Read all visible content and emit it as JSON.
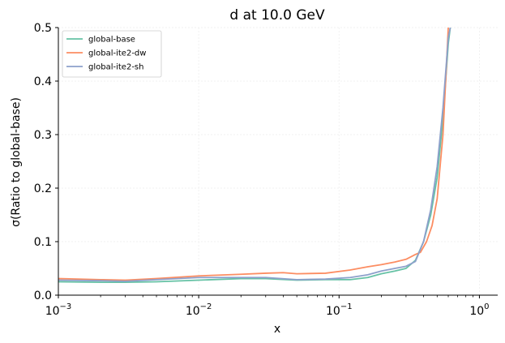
{
  "chart_data": {
    "type": "line",
    "title": "d at 10.0 GeV",
    "xlabel": "x",
    "ylabel": "σ(Ratio to global-base)",
    "xscale": "log",
    "xlim": [
      0.001,
      1.35
    ],
    "ylim": [
      0.0,
      0.5
    ],
    "grid": true,
    "legend_position": "top-left",
    "x_ticks": [
      {
        "value": 0.001,
        "base": "10",
        "exp": "−3"
      },
      {
        "value": 0.01,
        "base": "10",
        "exp": "−2"
      },
      {
        "value": 0.1,
        "base": "10",
        "exp": "−1"
      },
      {
        "value": 1,
        "base": "10",
        "exp": "0"
      }
    ],
    "y_ticks": [
      {
        "value": 0.0,
        "label": "0.0"
      },
      {
        "value": 0.1,
        "label": "0.1"
      },
      {
        "value": 0.2,
        "label": "0.2"
      },
      {
        "value": 0.3,
        "label": "0.3"
      },
      {
        "value": 0.4,
        "label": "0.4"
      },
      {
        "value": 0.5,
        "label": "0.5"
      }
    ],
    "series": [
      {
        "name": "global-base",
        "color": "#66c2a5",
        "x": [
          0.001,
          0.002,
          0.003,
          0.005,
          0.01,
          0.02,
          0.03,
          0.05,
          0.08,
          0.12,
          0.16,
          0.2,
          0.25,
          0.3,
          0.35,
          0.4,
          0.45,
          0.5,
          0.55,
          0.6,
          0.62
        ],
        "y": [
          0.025,
          0.024,
          0.024,
          0.025,
          0.028,
          0.031,
          0.031,
          0.028,
          0.029,
          0.029,
          0.033,
          0.04,
          0.045,
          0.05,
          0.065,
          0.1,
          0.15,
          0.22,
          0.33,
          0.47,
          0.5
        ]
      },
      {
        "name": "global-ite2-dw",
        "color": "#fc8d62",
        "x": [
          0.001,
          0.002,
          0.003,
          0.005,
          0.01,
          0.02,
          0.03,
          0.04,
          0.05,
          0.08,
          0.12,
          0.16,
          0.2,
          0.25,
          0.3,
          0.35,
          0.38,
          0.42,
          0.46,
          0.5,
          0.55,
          0.58,
          0.6
        ],
        "y": [
          0.031,
          0.029,
          0.028,
          0.031,
          0.036,
          0.039,
          0.041,
          0.042,
          0.04,
          0.041,
          0.047,
          0.053,
          0.057,
          0.062,
          0.067,
          0.076,
          0.08,
          0.1,
          0.13,
          0.18,
          0.3,
          0.42,
          0.5
        ]
      },
      {
        "name": "global-ite2-sh",
        "color": "#8da0cb",
        "x": [
          0.001,
          0.002,
          0.003,
          0.005,
          0.01,
          0.02,
          0.03,
          0.05,
          0.08,
          0.12,
          0.16,
          0.2,
          0.25,
          0.3,
          0.35,
          0.4,
          0.45,
          0.5,
          0.55,
          0.6,
          0.62
        ],
        "y": [
          0.028,
          0.027,
          0.026,
          0.029,
          0.033,
          0.033,
          0.033,
          0.029,
          0.03,
          0.033,
          0.038,
          0.045,
          0.05,
          0.054,
          0.063,
          0.1,
          0.16,
          0.24,
          0.35,
          0.48,
          0.5
        ]
      }
    ]
  }
}
